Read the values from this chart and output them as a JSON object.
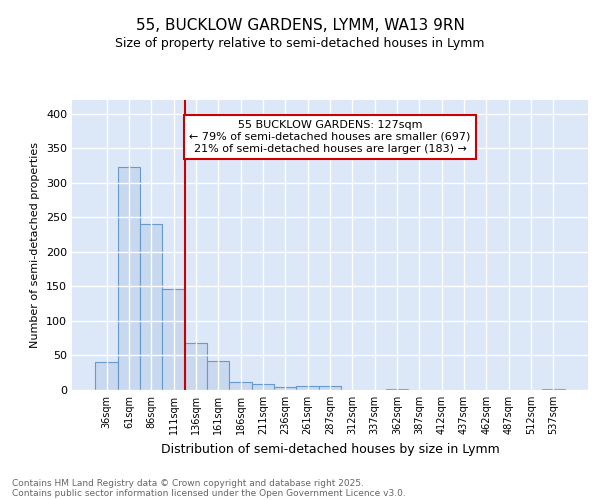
{
  "title1": "55, BUCKLOW GARDENS, LYMM, WA13 9RN",
  "title2": "Size of property relative to semi-detached houses in Lymm",
  "xlabel": "Distribution of semi-detached houses by size in Lymm",
  "ylabel": "Number of semi-detached properties",
  "categories": [
    "36sqm",
    "61sqm",
    "86sqm",
    "111sqm",
    "136sqm",
    "161sqm",
    "186sqm",
    "211sqm",
    "236sqm",
    "261sqm",
    "287sqm",
    "312sqm",
    "337sqm",
    "362sqm",
    "387sqm",
    "412sqm",
    "437sqm",
    "462sqm",
    "487sqm",
    "512sqm",
    "537sqm"
  ],
  "values": [
    40,
    323,
    241,
    147,
    68,
    42,
    11,
    8,
    4,
    6,
    6,
    0,
    0,
    2,
    0,
    0,
    0,
    0,
    0,
    0,
    2
  ],
  "bar_color": "#c8d8ee",
  "bar_edge_color": "#6699cc",
  "vline_color": "#cc0000",
  "vline_x": 3.5,
  "annotation_text": "55 BUCKLOW GARDENS: 127sqm\n← 79% of semi-detached houses are smaller (697)\n21% of semi-detached houses are larger (183) →",
  "annotation_box_color": "#ffffff",
  "annotation_box_edge": "#cc0000",
  "ylim": [
    0,
    420
  ],
  "yticks": [
    0,
    50,
    100,
    150,
    200,
    250,
    300,
    350,
    400
  ],
  "background_color": "#ffffff",
  "plot_bg_color": "#dce8f8",
  "grid_color": "#ffffff",
  "footer1": "Contains HM Land Registry data © Crown copyright and database right 2025.",
  "footer2": "Contains public sector information licensed under the Open Government Licence v3.0."
}
